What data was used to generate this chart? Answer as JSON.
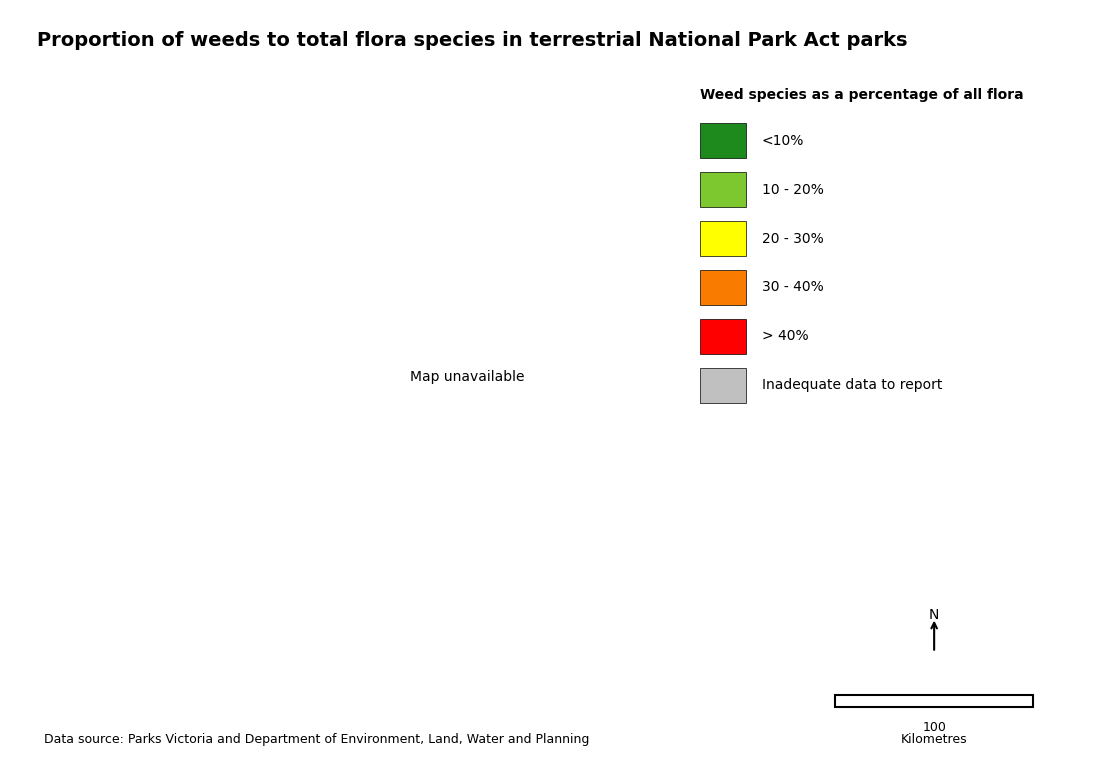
{
  "title": "Proportion of weeds to total flora species in terrestrial National Park Act parks",
  "legend_title": "Weed species as a percentage of all flora",
  "legend_items": [
    {
      "label": "<10%",
      "color": "#1e8a1e"
    },
    {
      "label": "10 - 20%",
      "color": "#7dc72f"
    },
    {
      "label": "20 - 30%",
      "color": "#ffff00"
    },
    {
      "label": "30 - 40%",
      "color": "#f97b00"
    },
    {
      " label": "> 40%",
      "color": "#ff0000"
    },
    {
      "label": "Inadequate data to report",
      "color": "#c0c0c0"
    }
  ],
  "legend_colors": [
    "#1e8a1e",
    "#7dc72f",
    "#ffff00",
    "#f97b00",
    "#ff0000",
    "#c0c0c0"
  ],
  "legend_labels": [
    "<10%",
    "10 - 20%",
    "20 - 30%",
    "30 - 40%",
    "> 40%",
    "Inadequate data to report"
  ],
  "datasource": "Data source: Parks Victoria and Department of Environment, Land, Water and Planning",
  "background_color": "#ffffff",
  "map_background": "#c0c0c0",
  "scale_label": "100",
  "scale_unit": "Kilometres",
  "title_fontsize": 14,
  "legend_fontsize": 10,
  "datasource_fontsize": 9
}
